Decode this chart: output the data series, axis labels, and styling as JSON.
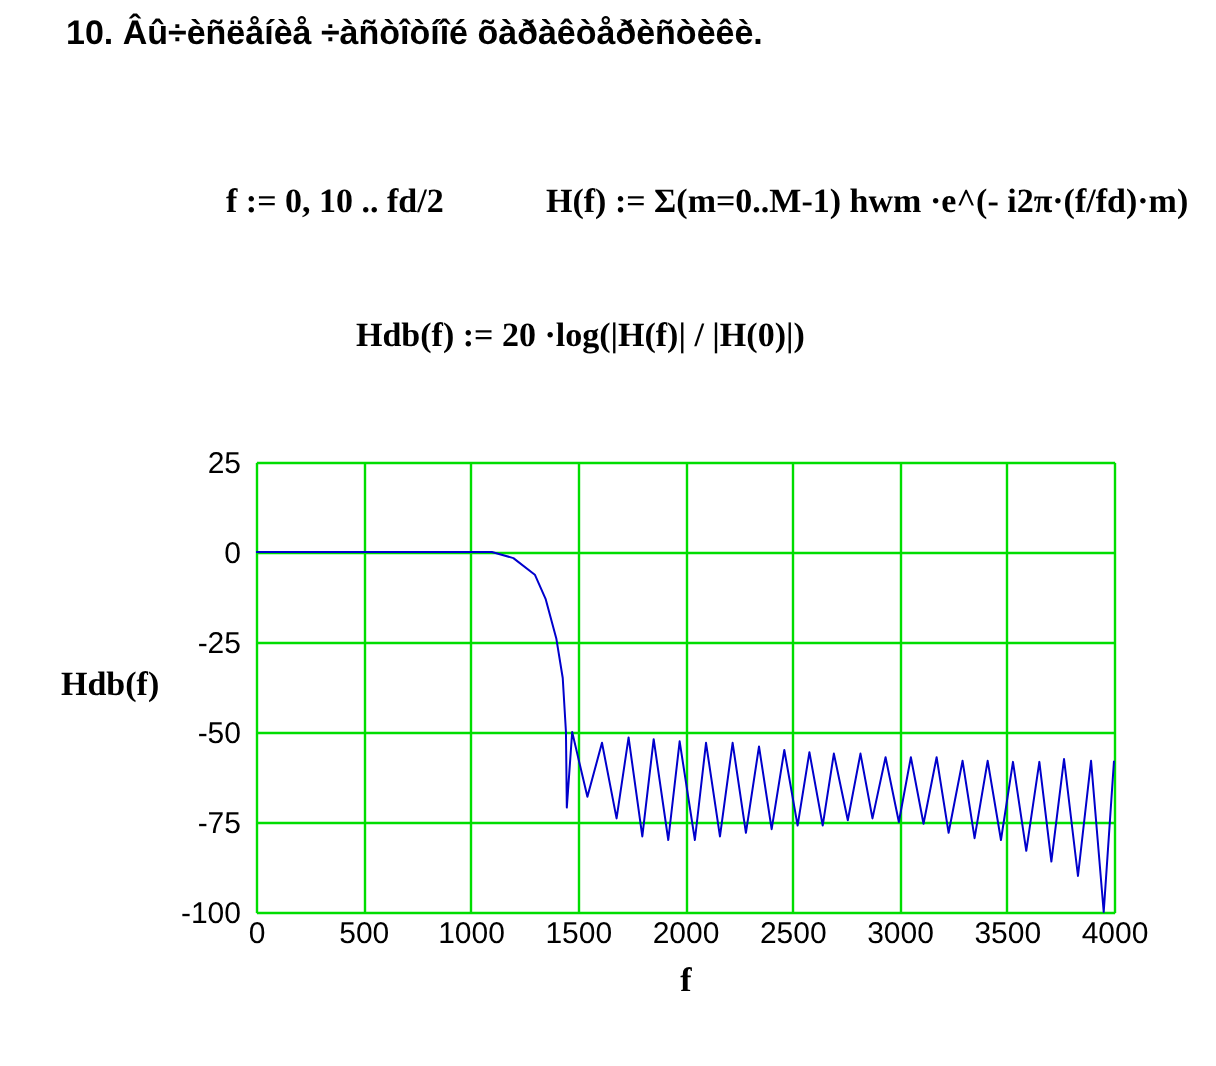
{
  "chart_data": {
    "type": "line",
    "title": "10. Âû÷èñëåíèå  ÷àñòîòíîé      õàðàêòåðèñòèêè.",
    "annotations": [
      "f := 0, 10 .. fd/2",
      "H(f) := Σ(m=0..M-1) hwm ·e^(- i2π·(f/fd)·m)",
      "Hdb(f) := 20 ·log(|H(f)| / |H(0)|)"
    ],
    "xlabel": "f",
    "ylabel": "Hdb(f)",
    "series": [
      {
        "color": "#0000cc",
        "x": [
          0,
          500,
          1000,
          1100,
          1200,
          1300,
          1350,
          1400,
          1430,
          1445,
          1449,
          1474,
          1545,
          1613,
          1681,
          1737,
          1801,
          1854,
          1922,
          1975,
          2046,
          2098,
          2163,
          2222,
          2284,
          2345,
          2404,
          2463,
          2525,
          2580,
          2642,
          2694,
          2759,
          2818,
          2874,
          2935,
          2997,
          3053,
          3112,
          3173,
          3229,
          3294,
          3350,
          3411,
          3473,
          3529,
          3591,
          3652,
          3708,
          3767,
          3832,
          3893,
          3952,
          4000
        ],
        "values": [
          0,
          0,
          0,
          0,
          -1.7,
          -6.3,
          -13,
          -24,
          -35,
          -50,
          -71,
          -50,
          -68,
          -53,
          -74,
          -51.5,
          -79,
          -52,
          -80,
          -52.6,
          -80,
          -53,
          -79,
          -53,
          -78,
          -54,
          -77,
          -55,
          -76,
          -55.6,
          -76,
          -56,
          -74.5,
          -56,
          -74,
          -57,
          -75,
          -57,
          -75.5,
          -57,
          -78,
          -58,
          -79.5,
          -58,
          -80,
          -58.3,
          -83,
          -58.3,
          -86,
          -57.5,
          -90,
          -58,
          -100,
          -58
        ]
      }
    ],
    "xlim": [
      0,
      4000
    ],
    "xticks": [
      0,
      500,
      1000,
      1500,
      2000,
      2500,
      3000,
      3500,
      4000
    ],
    "ylim": [
      -100,
      25
    ],
    "yticks": [
      -100,
      -75,
      -50,
      -25,
      0,
      25
    ],
    "grid": true,
    "marker": "none",
    "line_style": "solid"
  }
}
